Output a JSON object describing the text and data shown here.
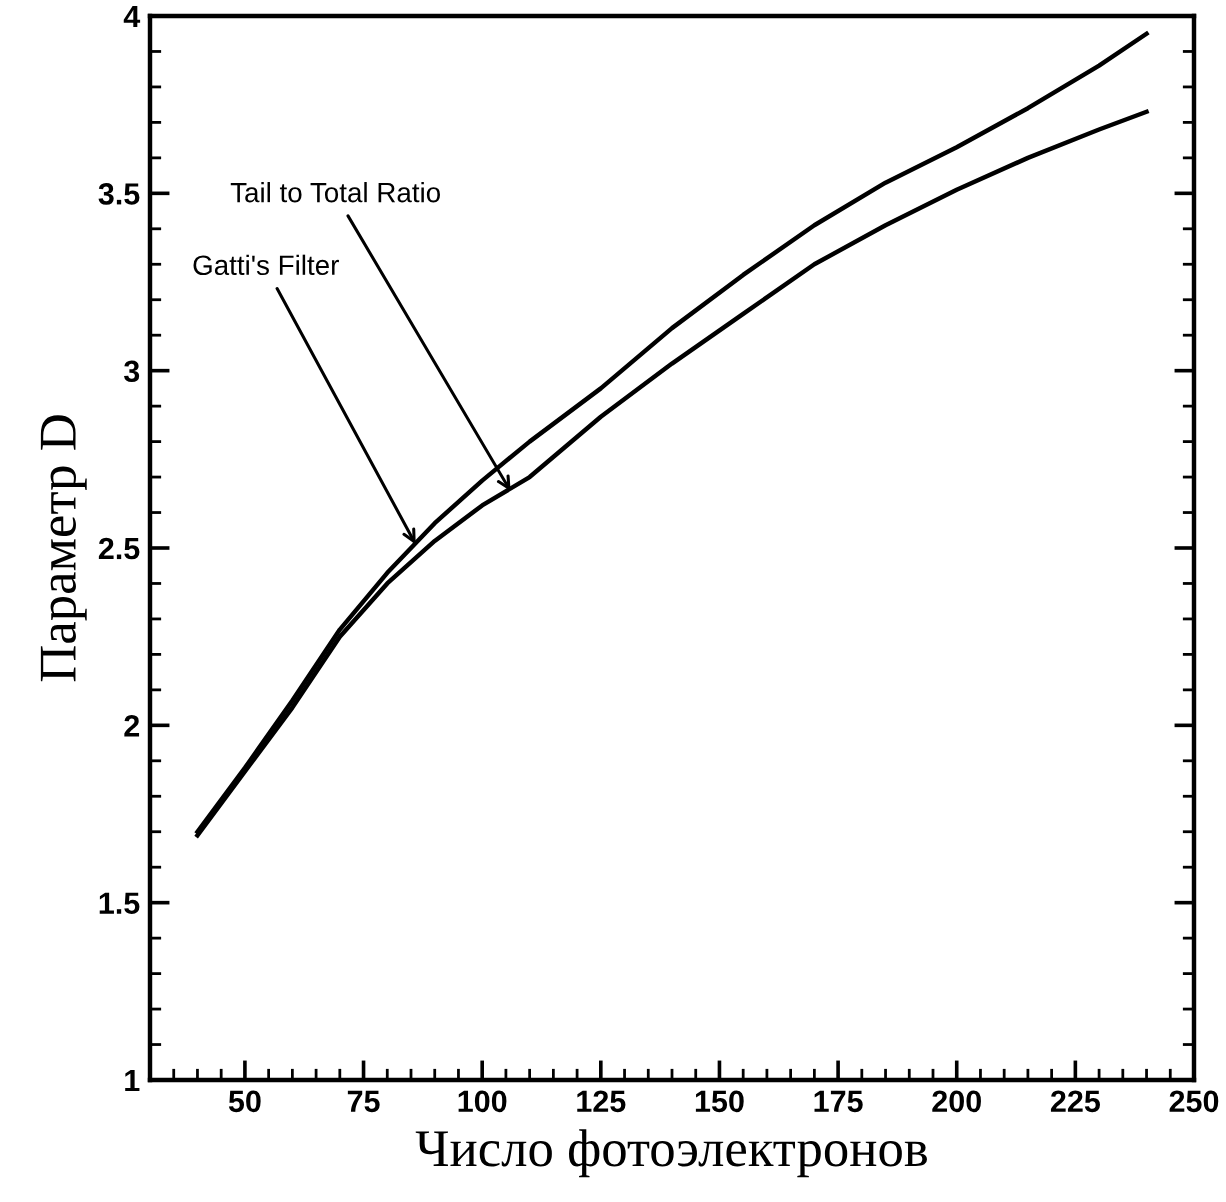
{
  "chart_data": {
    "type": "line",
    "xlabel": "Число фотоэлектронов",
    "ylabel": "Параметр D",
    "xlim": [
      30,
      250
    ],
    "xticks": [
      50,
      75,
      100,
      125,
      150,
      175,
      200,
      225,
      250
    ],
    "ylim": [
      1,
      4
    ],
    "yticks": [
      1,
      1.5,
      2,
      2.5,
      3,
      3.5,
      4
    ],
    "grid": false,
    "marker": "none",
    "line_style": "solid",
    "x": [
      40,
      50,
      60,
      70,
      80,
      90,
      100,
      110,
      125,
      140,
      155,
      170,
      185,
      200,
      215,
      230,
      240
    ],
    "series": [
      {
        "color": "#000000",
        "values": [
          1.7,
          1.88,
          2.07,
          2.27,
          2.43,
          2.57,
          2.69,
          2.8,
          2.95,
          3.12,
          3.27,
          3.41,
          3.53,
          3.63,
          3.74,
          3.86,
          3.95
        ]
      },
      {
        "color": "#000000",
        "values": [
          1.69,
          1.87,
          2.05,
          2.25,
          2.4,
          2.52,
          2.62,
          2.7,
          2.87,
          3.02,
          3.16,
          3.3,
          3.41,
          3.51,
          3.6,
          3.68,
          3.73
        ]
      }
    ],
    "annotations": [
      {
        "text": "Gatti's Filter",
        "x": 86,
        "y": 2.51
      },
      {
        "text": "Tail to Total Ratio",
        "x": 106,
        "y": 2.66
      }
    ]
  }
}
